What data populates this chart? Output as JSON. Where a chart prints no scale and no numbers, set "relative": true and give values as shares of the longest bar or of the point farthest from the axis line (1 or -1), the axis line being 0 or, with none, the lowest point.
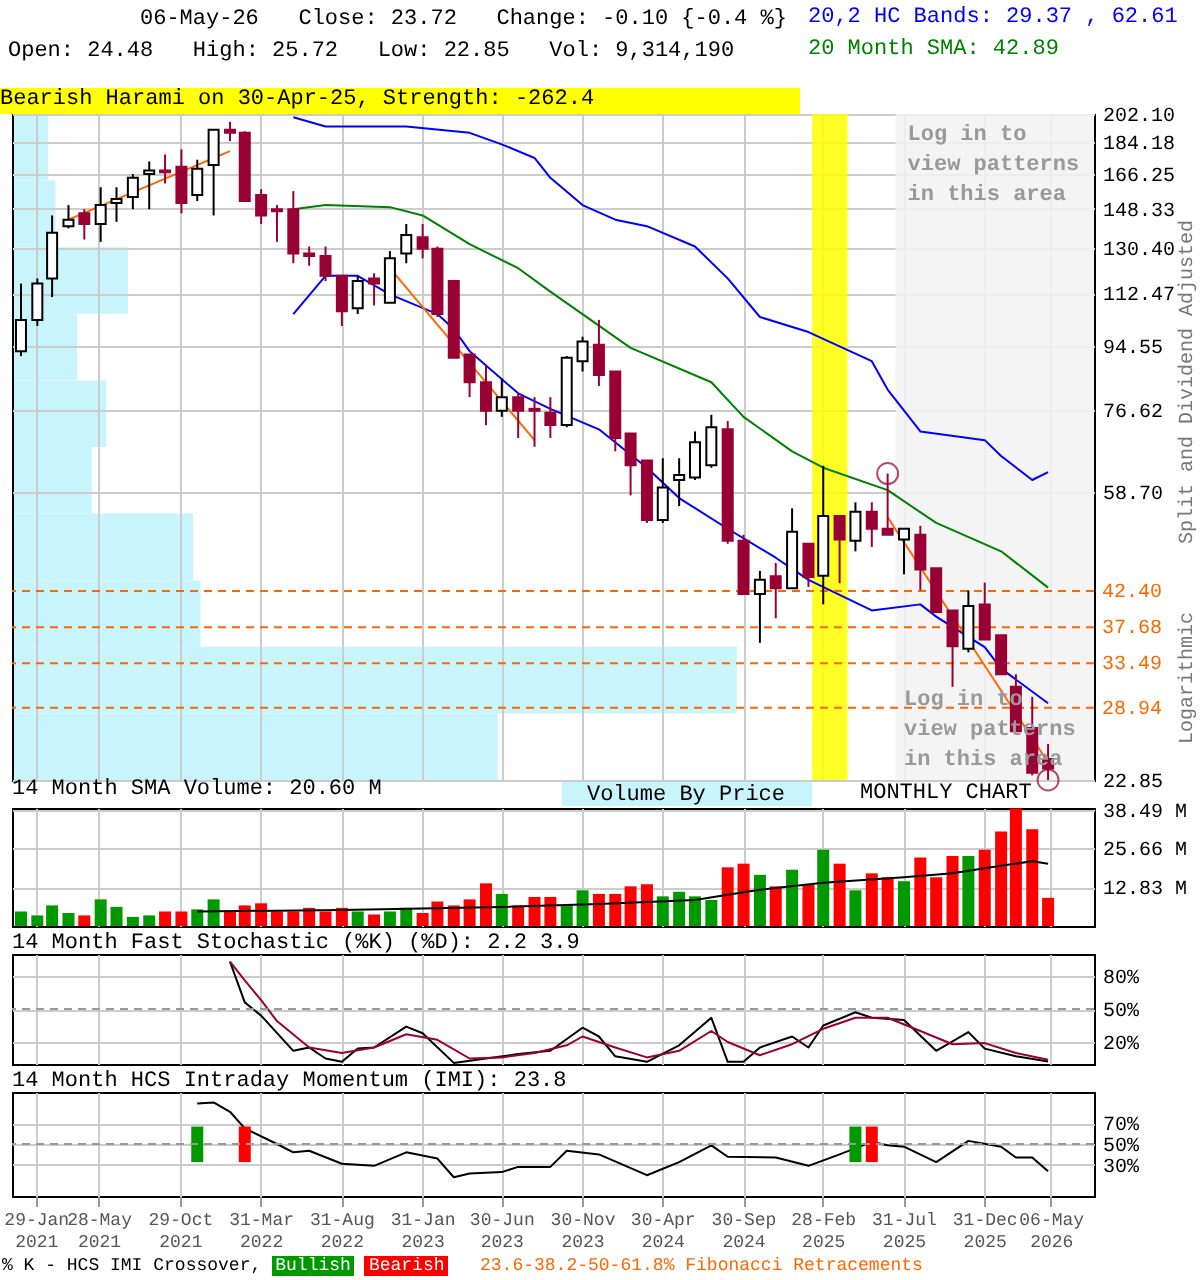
{
  "chart_data": [
    {
      "type": "candlestick",
      "title": "06-May-26   Close: 23.72   Change: -0.10 {-0.4 %}",
      "subtitle": "Open: 24.48   High: 25.72   Low: 22.85   Vol: 9,314,190",
      "x": [
        "2021-01",
        "2021-02",
        "2021-03",
        "2021-04",
        "2021-05",
        "2021-06",
        "2021-07",
        "2021-08",
        "2021-09",
        "2021-10",
        "2021-11",
        "2021-12",
        "2022-01",
        "2022-02",
        "2022-03",
        "2022-04",
        "2022-05",
        "2022-06",
        "2022-07",
        "2022-08",
        "2022-09",
        "2022-10",
        "2022-11",
        "2022-12",
        "2023-01",
        "2023-02",
        "2023-03",
        "2023-04",
        "2023-05",
        "2023-06",
        "2023-07",
        "2023-08",
        "2023-09",
        "2023-10",
        "2023-11",
        "2023-12",
        "2024-01",
        "2024-02",
        "2024-03",
        "2024-04",
        "2024-05",
        "2024-06",
        "2024-07",
        "2024-08",
        "2024-09",
        "2024-10",
        "2024-11",
        "2024-12",
        "2025-01",
        "2025-02",
        "2025-03",
        "2025-04",
        "2025-05",
        "2025-06",
        "2025-07",
        "2025-08",
        "2025-09",
        "2025-10",
        "2025-11",
        "2025-12",
        "2026-01",
        "2026-02",
        "2026-03",
        "2026-04",
        "2026-05"
      ],
      "ohlc": [
        [
          93,
          116,
          91.5,
          103
        ],
        [
          103,
          118,
          101,
          116
        ],
        [
          118,
          145,
          111,
          137
        ],
        [
          140,
          150,
          139,
          143
        ],
        [
          146,
          148,
          134,
          141
        ],
        [
          141,
          159,
          133,
          150
        ],
        [
          151,
          159,
          142,
          153
        ],
        [
          154,
          166,
          148,
          164
        ],
        [
          166,
          173,
          148,
          168
        ],
        [
          168,
          177,
          161,
          167
        ],
        [
          170,
          180,
          146,
          151
        ],
        [
          155,
          174,
          152,
          169
        ],
        [
          171,
          192,
          145,
          192
        ],
        [
          192,
          197,
          185,
          190
        ],
        [
          190,
          191,
          152,
          152
        ],
        [
          155,
          158,
          141,
          145
        ],
        [
          148,
          150,
          133,
          147
        ],
        [
          148,
          157,
          124,
          128
        ],
        [
          128,
          131,
          123,
          127
        ],
        [
          127,
          131,
          117,
          119
        ],
        [
          119,
          119,
          101,
          106
        ],
        [
          107,
          119,
          105,
          117
        ],
        [
          118,
          120,
          108,
          116
        ],
        [
          109,
          129,
          109,
          126
        ],
        [
          128,
          141,
          124,
          136
        ],
        [
          135,
          141,
          126,
          130
        ],
        [
          130,
          131,
          104,
          105
        ],
        [
          117,
          117,
          91,
          91
        ],
        [
          92,
          92,
          80,
          84
        ],
        [
          84,
          89,
          73,
          76.5
        ],
        [
          76.5,
          85,
          75,
          80
        ],
        [
          80,
          81,
          70,
          76.5
        ],
        [
          77,
          80,
          68,
          76.5
        ],
        [
          76,
          80,
          70,
          73
        ],
        [
          73,
          91.5,
          72.5,
          91
        ],
        [
          90,
          97.5,
          87,
          96
        ],
        [
          95,
          103,
          83,
          86
        ],
        [
          87,
          87,
          67,
          70
        ],
        [
          71,
          71,
          58,
          64
        ],
        [
          65,
          65,
          53,
          53.5
        ],
        [
          53.5,
          65.5,
          53,
          59.5
        ],
        [
          61,
          65.5,
          56,
          62
        ],
        [
          61.5,
          71.5,
          61,
          69
        ],
        [
          64,
          75.5,
          63.5,
          72.5
        ],
        [
          72,
          74,
          49.5,
          50
        ],
        [
          50,
          51,
          42,
          42
        ],
        [
          42,
          45.3,
          35.8,
          44
        ],
        [
          44.5,
          46.5,
          38.8,
          42.8
        ],
        [
          42.8,
          55.6,
          42.8,
          51.5
        ],
        [
          49.5,
          49.5,
          43,
          44.4
        ],
        [
          44.6,
          63.9,
          40.6,
          54.2
        ],
        [
          54.2,
          54.2,
          43.5,
          50.2
        ],
        [
          50,
          56.7,
          48.3,
          55
        ],
        [
          55,
          56.7,
          49,
          52
        ],
        [
          52,
          62.3,
          51,
          51
        ],
        [
          50.2,
          52,
          44.8,
          52
        ],
        [
          51,
          52.5,
          42.5,
          45.5
        ],
        [
          45.7,
          45.7,
          39.6,
          39.6
        ],
        [
          39.8,
          39.8,
          31,
          35.4
        ],
        [
          35.1,
          42.5,
          34.7,
          40.4
        ],
        [
          40.6,
          43.6,
          36.2,
          36.2
        ],
        [
          36.7,
          36.7,
          32.3,
          32.3
        ],
        [
          31,
          32.3,
          26.8,
          26.8
        ],
        [
          27.1,
          30,
          23.2,
          23.4
        ],
        [
          24.48,
          25.72,
          22.85,
          23.72
        ]
      ],
      "colors": [
        "#ffffff",
        "#ffffff",
        "#ffffff",
        "#ffffff",
        "#990033",
        "#ffffff",
        "#ffffff",
        "#ffffff",
        "#ffffff",
        "#990033",
        "#990033",
        "#ffffff",
        "#ffffff",
        "#990033",
        "#990033",
        "#990033",
        "#990033",
        "#990033",
        "#990033",
        "#990033",
        "#990033",
        "#ffffff",
        "#990033",
        "#ffffff",
        "#ffffff",
        "#990033",
        "#990033",
        "#990033",
        "#990033",
        "#990033",
        "#ffffff",
        "#990033",
        "#990033",
        "#990033",
        "#ffffff",
        "#ffffff",
        "#990033",
        "#990033",
        "#990033",
        "#990033",
        "#ffffff",
        "#ffffff",
        "#ffffff",
        "#ffffff",
        "#990033",
        "#990033",
        "#ffffff",
        "#990033",
        "#ffffff",
        "#990033",
        "#ffffff",
        "#990033",
        "#ffffff",
        "#990033",
        "#990033",
        "#ffffff",
        "#990033",
        "#990033",
        "#990033",
        "#ffffff",
        "#990033",
        "#990033",
        "#990033",
        "#990033",
        "#990033"
      ],
      "series": [
        {
          "type": "line",
          "name": "20,2 HC Bands: 29.37 , 62.61",
          "color": "#0000ff",
          "x": [
            "2022-06",
            "2022-08",
            "2023-01",
            "2023-05",
            "2023-07",
            "2023-09",
            "2023-10",
            "2023-12",
            "2024-02",
            "2024-04",
            "2024-07",
            "2024-09",
            "2024-11",
            "2025-02",
            "2025-06",
            "2025-07",
            "2025-09",
            "2026-01",
            "2026-02",
            "2026-04",
            "2026-05"
          ],
          "values": [
            200,
            194,
            194,
            190,
            183,
            175,
            164,
            150,
            143,
            140,
            131,
            118,
            104,
            99,
            90,
            82,
            71.5,
            69.5,
            66,
            61,
            62.61
          ]
        },
        {
          "type": "line",
          "color": "#0000ff",
          "x": [
            "2022-06",
            "2022-08",
            "2022-10",
            "2022-12",
            "2023-03",
            "2023-04",
            "2023-05",
            "2023-08",
            "2023-10",
            "2024-01",
            "2024-04",
            "2024-06",
            "2024-09",
            "2024-12",
            "2025-02",
            "2025-06",
            "2025-09",
            "2025-10",
            "2026-01",
            "2026-02",
            "2026-05"
          ],
          "values": [
            105,
            119,
            119,
            112,
            105,
            100,
            93,
            81,
            77,
            72,
            63.5,
            57.5,
            52,
            47.3,
            44,
            39.8,
            40.6,
            39,
            35.3,
            32.9,
            29.37
          ]
        },
        {
          "type": "line",
          "name": "20 Month SMA: 42.89",
          "color": "#008000",
          "x": [
            "2022-06",
            "2022-08",
            "2022-12",
            "2023-02",
            "2023-05",
            "2023-08",
            "2023-10",
            "2024-03",
            "2024-08",
            "2024-10",
            "2025-01",
            "2025-03",
            "2025-07",
            "2025-10",
            "2026-02",
            "2026-05"
          ],
          "values": [
            148,
            150,
            149,
            145,
            132,
            122,
            113,
            94,
            84,
            75,
            67,
            63.5,
            59,
            53,
            48.3,
            42.89
          ]
        },
        {
          "type": "line",
          "color": "#ff6600",
          "x": [
            "2021-04",
            "2022-02"
          ],
          "values": [
            143,
            179
          ]
        },
        {
          "type": "line",
          "color": "#ff6600",
          "x": [
            "2022-12",
            "2023-09"
          ],
          "values": [
            122,
            69.5
          ]
        },
        {
          "type": "line",
          "color": "#ff6600",
          "x": [
            "2025-07",
            "2026-05"
          ],
          "values": [
            54,
            24.2
          ]
        },
        {
          "type": "scatter",
          "marker": "circle",
          "color": "#990033",
          "x": [
            "2025-07",
            "2026-05"
          ],
          "values": [
            62.3,
            22.85
          ]
        }
      ],
      "xlim": [
        "2020-12-15",
        "2026-07-27"
      ],
      "xticks": [
        {
          "value": "2021-01-29",
          "label": null
        },
        {
          "value": "2021-05-28",
          "label": null
        },
        {
          "value": "2021-10-29",
          "label": null
        },
        {
          "value": "2022-03-31",
          "label": null
        },
        {
          "value": "2022-08-31",
          "label": null
        },
        {
          "value": "2023-01-31",
          "label": null
        },
        {
          "value": "2023-06-30",
          "label": null
        },
        {
          "value": "2023-11-30",
          "label": null
        },
        {
          "value": "2024-04-30",
          "label": null
        },
        {
          "value": "2024-09-30",
          "label": null
        },
        {
          "value": "2025-02-28",
          "label": null
        },
        {
          "value": "2025-07-31",
          "label": null
        },
        {
          "value": "2025-12-31",
          "label": null
        },
        {
          "value": "2026-05-06",
          "label": null
        }
      ],
      "ylim": [
        22.85,
        202.1
      ],
      "log": true,
      "yticks": [
        {
          "value": 202.1,
          "label": "202.10"
        },
        {
          "value": 184.18,
          "label": "184.18"
        },
        {
          "value": 166.25,
          "label": "166.25"
        },
        {
          "value": 148.33,
          "label": "148.33"
        },
        {
          "value": 130.4,
          "label": "130.40"
        },
        {
          "value": 112.47,
          "label": "112.47"
        },
        {
          "value": 94.55,
          "label": "94.55"
        },
        {
          "value": 76.62,
          "label": "76.62"
        },
        {
          "value": 58.7,
          "label": "58.70"
        },
        {
          "value": 22.85,
          "label": "22.85"
        }
      ],
      "tick_labels": "y",
      "grid": true,
      "legend": "top right",
      "ref_lines": [
        {
          "axis": "y",
          "value": 42.4,
          "label": "42.40",
          "color": "#ff6600",
          "line_style": "dashed"
        },
        {
          "axis": "y",
          "value": 37.68,
          "label": "37.68",
          "color": "#ff6600",
          "line_style": "dashed"
        },
        {
          "axis": "y",
          "value": 33.49,
          "label": "33.49",
          "color": "#ff6600",
          "line_style": "dashed"
        },
        {
          "axis": "y",
          "value": 28.94,
          "label": "28.94",
          "color": "#ff6600",
          "line_style": "dashed"
        }
      ],
      "bands": [
        {
          "axis": "x",
          "from": "2025-07-16",
          "to": "2026-07-27",
          "label": "Log in to view patterns in this area",
          "color": "#f2f2f2"
        },
        {
          "axis": "x",
          "from": "2025-02-08",
          "to": "2025-04-16",
          "color": "#ffff00"
        }
      ],
      "annotations": [
        "Bearish Harami on 30-Apr-25, Strength: -262.4",
        "MONTHLY CHART",
        "Split and Dividend Adjusted",
        "Logarithmic",
        {
          "text": "Log in to view patterns in this area",
          "x": "2025-08",
          "y": 31
        },
        "23.6-38.2-50-61.8% Fibonacci Retracements"
      ]
    },
    {
      "type": "bar",
      "orientation": "horizontal",
      "relative": true,
      "title": "Volume By Price",
      "color": "#c8f4fc",
      "categories": [
        null,
        null,
        null,
        null,
        null,
        null,
        null,
        null,
        null,
        null
      ],
      "values": [
        0.05,
        0.06,
        0.16,
        0.09,
        0.13,
        0.11,
        0.25,
        0.26,
        1,
        0.67
      ]
    },
    {
      "type": "bar",
      "title": "14 Month SMA Volume: 20.60 M",
      "x": [
        "2021-01",
        "2021-02",
        "2021-03",
        "2021-04",
        "2021-05",
        "2021-06",
        "2021-07",
        "2021-08",
        "2021-09",
        "2021-10",
        "2021-11",
        "2021-12",
        "2022-01",
        "2022-02",
        "2022-03",
        "2022-04",
        "2022-05",
        "2022-06",
        "2022-07",
        "2022-08",
        "2022-09",
        "2022-10",
        "2022-11",
        "2022-12",
        "2023-01",
        "2023-02",
        "2023-03",
        "2023-04",
        "2023-05",
        "2023-06",
        "2023-07",
        "2023-08",
        "2023-09",
        "2023-10",
        "2023-11",
        "2023-12",
        "2024-01",
        "2024-02",
        "2024-03",
        "2024-04",
        "2024-05",
        "2024-06",
        "2024-07",
        "2024-08",
        "2024-09",
        "2024-10",
        "2024-11",
        "2024-12",
        "2025-01",
        "2025-02",
        "2025-03",
        "2025-04",
        "2025-05",
        "2025-06",
        "2025-07",
        "2025-08",
        "2025-09",
        "2025-10",
        "2025-11",
        "2025-12",
        "2026-01",
        "2026-02",
        "2026-03",
        "2026-04",
        "2026-05"
      ],
      "series": [
        {
          "type": "bar",
          "values": [
            4.8,
            3.5,
            6.8,
            4.3,
            3.5,
            8.8,
            6.3,
            3.0,
            3.5,
            4.8,
            4.8,
            5.5,
            8.8,
            4.8,
            6.8,
            7.5,
            4.8,
            4.8,
            6.0,
            4.8,
            6.0,
            4.8,
            3.8,
            4.8,
            6.0,
            4.3,
            8.1,
            6.8,
            8.8,
            14.1,
            10.6,
            6.8,
            9.6,
            9.6,
            6.8,
            11.8,
            10.6,
            10.6,
            13.1,
            13.8,
            9.8,
            11.3,
            9.8,
            8.6,
            19.4,
            20.6,
            16.9,
            13.1,
            18.6,
            13.8,
            25.2,
            20.6,
            11.8,
            17.4,
            16.1,
            14.8,
            22.6,
            16.1,
            23.1,
            23.1,
            25.2,
            31.2,
            38.8,
            32.0,
            9.31
          ],
          "colors": [
            "#009900",
            "#009900",
            "#009900",
            "#009900",
            "#ff0000",
            "#009900",
            "#009900",
            "#009900",
            "#009900",
            "#ff0000",
            "#ff0000",
            "#009900",
            "#009900",
            "#ff0000",
            "#ff0000",
            "#ff0000",
            "#ff0000",
            "#ff0000",
            "#ff0000",
            "#ff0000",
            "#ff0000",
            "#009900",
            "#ff0000",
            "#009900",
            "#009900",
            "#ff0000",
            "#ff0000",
            "#ff0000",
            "#ff0000",
            "#ff0000",
            "#009900",
            "#ff0000",
            "#ff0000",
            "#ff0000",
            "#009900",
            "#009900",
            "#ff0000",
            "#ff0000",
            "#ff0000",
            "#ff0000",
            "#009900",
            "#009900",
            "#009900",
            "#009900",
            "#ff0000",
            "#ff0000",
            "#009900",
            "#ff0000",
            "#009900",
            "#ff0000",
            "#009900",
            "#ff0000",
            "#009900",
            "#ff0000",
            "#ff0000",
            "#009900",
            "#ff0000",
            "#ff0000",
            "#ff0000",
            "#009900",
            "#ff0000",
            "#ff0000",
            "#ff0000",
            "#ff0000",
            "#ff0000"
          ]
        },
        {
          "type": "line",
          "color": "#000000",
          "x": [
            "2021-12",
            "2022-09",
            "2023-07",
            "2024-01",
            "2024-07",
            "2024-09",
            "2024-11",
            "2025-03",
            "2025-08",
            "2025-11",
            "2026-02",
            "2026-04",
            "2026-05"
          ],
          "values": [
            4.8,
            5.3,
            6.3,
            7.3,
            8.6,
            10.3,
            12.0,
            14.3,
            16.1,
            17.4,
            19.9,
            21.4,
            20.6
          ]
        }
      ],
      "xlim": [
        "2020-12-15",
        "2026-07-27"
      ],
      "xticks": [
        {
          "value": "2021-01-29",
          "label": null
        },
        {
          "value": "2021-05-28",
          "label": null
        },
        {
          "value": "2021-10-29",
          "label": null
        },
        {
          "value": "2022-03-31",
          "label": null
        },
        {
          "value": "2022-08-31",
          "label": null
        },
        {
          "value": "2023-01-31",
          "label": null
        },
        {
          "value": "2023-06-30",
          "label": null
        },
        {
          "value": "2023-11-30",
          "label": null
        },
        {
          "value": "2024-04-30",
          "label": null
        },
        {
          "value": "2024-09-30",
          "label": null
        },
        {
          "value": "2025-02-28",
          "label": null
        },
        {
          "value": "2025-07-31",
          "label": null
        },
        {
          "value": "2025-12-31",
          "label": null
        },
        {
          "value": "2026-05-06",
          "label": null
        }
      ],
      "ylim": [
        0,
        39
      ],
      "yticks": [
        {
          "value": 12.83,
          "label": "12.83 M"
        },
        {
          "value": 25.66,
          "label": "25.66 M"
        },
        {
          "value": 38.49,
          "label": "38.49 M"
        }
      ],
      "tick_labels": "y",
      "grid": true
    },
    {
      "type": "line",
      "title": "14 Month Fast Stochastic (%K) (%D): 2.2   3.9",
      "series": [
        {
          "color": "#000000",
          "x": [
            "2022-02",
            "2022-03",
            "2022-04",
            "2022-06",
            "2022-07",
            "2022-08",
            "2022-09",
            "2022-10",
            "2022-11",
            "2023-01",
            "2023-02",
            "2023-04",
            "2023-06",
            "2023-08",
            "2023-10",
            "2023-12",
            "2024-01",
            "2024-02",
            "2024-04",
            "2024-06",
            "2024-08",
            "2024-09",
            "2024-10",
            "2024-11",
            "2025-01",
            "2025-02",
            "2025-03",
            "2025-05",
            "2025-06",
            "2025-08",
            "2025-10",
            "2025-12",
            "2026-01",
            "2026-03",
            "2026-05"
          ],
          "values": [
            93,
            56,
            44,
            12,
            15,
            5,
            2,
            14,
            15,
            34,
            28,
            1,
            5,
            9,
            12,
            33,
            25,
            7,
            2,
            17,
            42,
            2,
            2,
            15,
            25,
            15,
            35,
            47,
            42,
            40,
            12,
            29,
            14,
            7,
            2.2
          ]
        },
        {
          "color": "#990033",
          "x": [
            "2022-02",
            "2022-03",
            "2022-04",
            "2022-05",
            "2022-07",
            "2022-09",
            "2022-11",
            "2023-01",
            "2023-03",
            "2023-05",
            "2023-07",
            "2023-09",
            "2023-11",
            "2023-12",
            "2024-02",
            "2024-04",
            "2024-06",
            "2024-08",
            "2024-09",
            "2024-11",
            "2025-01",
            "2025-03",
            "2025-05",
            "2025-07",
            "2025-09",
            "2025-11",
            "2026-01",
            "2026-03",
            "2026-05"
          ],
          "values": [
            93,
            76,
            58,
            39,
            15,
            10,
            15,
            27,
            22,
            5,
            6,
            10,
            17,
            25,
            15,
            6,
            12,
            30,
            20,
            8,
            18,
            32,
            42,
            42,
            30,
            18,
            19,
            10,
            3.9
          ]
        }
      ],
      "xlim": [
        "2020-12-15",
        "2026-07-27"
      ],
      "xticks": [
        {
          "value": "2021-01-29",
          "label": null
        },
        {
          "value": "2021-05-28",
          "label": null
        },
        {
          "value": "2021-10-29",
          "label": null
        },
        {
          "value": "2022-03-31",
          "label": null
        },
        {
          "value": "2022-08-31",
          "label": null
        },
        {
          "value": "2023-01-31",
          "label": null
        },
        {
          "value": "2023-06-30",
          "label": null
        },
        {
          "value": "2023-11-30",
          "label": null
        },
        {
          "value": "2024-04-30",
          "label": null
        },
        {
          "value": "2024-09-30",
          "label": null
        },
        {
          "value": "2025-02-28",
          "label": null
        },
        {
          "value": "2025-07-31",
          "label": null
        },
        {
          "value": "2025-12-31",
          "label": null
        },
        {
          "value": "2026-05-06",
          "label": null
        }
      ],
      "ylim": [
        0,
        100
      ],
      "yticks": [
        {
          "value": 20,
          "label": "20%"
        },
        {
          "value": 50,
          "label": "50%"
        },
        {
          "value": 80,
          "label": "80%"
        }
      ],
      "ref_lines": [
        {
          "axis": "y",
          "value": 50,
          "color": "#999999",
          "line_style": "dashed"
        }
      ],
      "tick_labels": "y",
      "grid": true
    },
    {
      "type": "line",
      "title": "14 Month HCS Intraday Momentum (IMI): 23.8",
      "legend_title": "% K - HCS IMI Crossover,",
      "legend": "bottom",
      "series": [
        {
          "color": "#000000",
          "x": [
            "2021-12",
            "2022-01",
            "2022-02",
            "2022-03",
            "2022-05",
            "2022-06",
            "2022-07",
            "2022-09",
            "2022-11",
            "2023-01",
            "2023-03",
            "2023-04",
            "2023-05",
            "2023-07",
            "2023-08",
            "2023-10",
            "2023-11",
            "2024-01",
            "2024-04",
            "2024-06",
            "2024-08",
            "2024-09",
            "2024-12",
            "2025-02",
            "2025-04",
            "2025-06",
            "2025-07",
            "2025-08",
            "2025-10",
            "2025-12",
            "2026-02",
            "2026-03",
            "2026-04",
            "2026-05"
          ],
          "values": [
            89,
            90,
            81,
            65,
            50,
            42,
            43.5,
            31,
            29,
            42,
            36,
            18,
            21.6,
            23,
            28,
            28,
            43.5,
            40,
            20,
            32.6,
            48.7,
            37.7,
            37,
            29,
            40,
            52,
            48.7,
            47.4,
            32.6,
            53,
            47.4,
            37,
            37,
            23.8
          ]
        },
        {
          "type": "bar",
          "name": "Bullish",
          "color": "#009900",
          "x": [
            "2021-12",
            "2025-05"
          ],
          "base": [
            32.6,
            32.6
          ],
          "values": [
            34.2,
            34.2
          ]
        },
        {
          "type": "bar",
          "name": "Bearish",
          "color": "#ff0000",
          "x": [
            "2022-03",
            "2025-06"
          ],
          "base": [
            32.6,
            32.6
          ],
          "values": [
            34.2,
            34.2
          ]
        }
      ],
      "xlim": [
        "2020-12-15",
        "2026-07-27"
      ],
      "xticks": [
        {
          "value": "2021-01-29",
          "label": "29-Jan 2021"
        },
        {
          "value": "2021-05-28",
          "label": "28-May 2021"
        },
        {
          "value": "2021-10-29",
          "label": "29-Oct 2021"
        },
        {
          "value": "2022-03-31",
          "label": "31-Mar 2022"
        },
        {
          "value": "2022-08-31",
          "label": "31-Aug 2022"
        },
        {
          "value": "2023-01-31",
          "label": "31-Jan 2023"
        },
        {
          "value": "2023-06-30",
          "label": "30-Jun 2023"
        },
        {
          "value": "2023-11-30",
          "label": "30-Nov 2023"
        },
        {
          "value": "2024-04-30",
          "label": "30-Apr 2024"
        },
        {
          "value": "2024-09-30",
          "label": "30-Sep 2024"
        },
        {
          "value": "2025-02-28",
          "label": "28-Feb 2025"
        },
        {
          "value": "2025-07-31",
          "label": "31-Jul 2025"
        },
        {
          "value": "2025-12-31",
          "label": "31-Dec 2025"
        },
        {
          "value": "2026-05-06",
          "label": "06-May 2026"
        }
      ],
      "ylim": [
        0,
        100
      ],
      "yticks": [
        {
          "value": 30,
          "label": "30%"
        },
        {
          "value": 50,
          "label": "50%"
        },
        {
          "value": 70,
          "label": "70%"
        }
      ],
      "ref_lines": [
        {
          "axis": "y",
          "value": 50,
          "color": "#999999",
          "line_style": "dashed"
        }
      ],
      "grid": true
    }
  ]
}
